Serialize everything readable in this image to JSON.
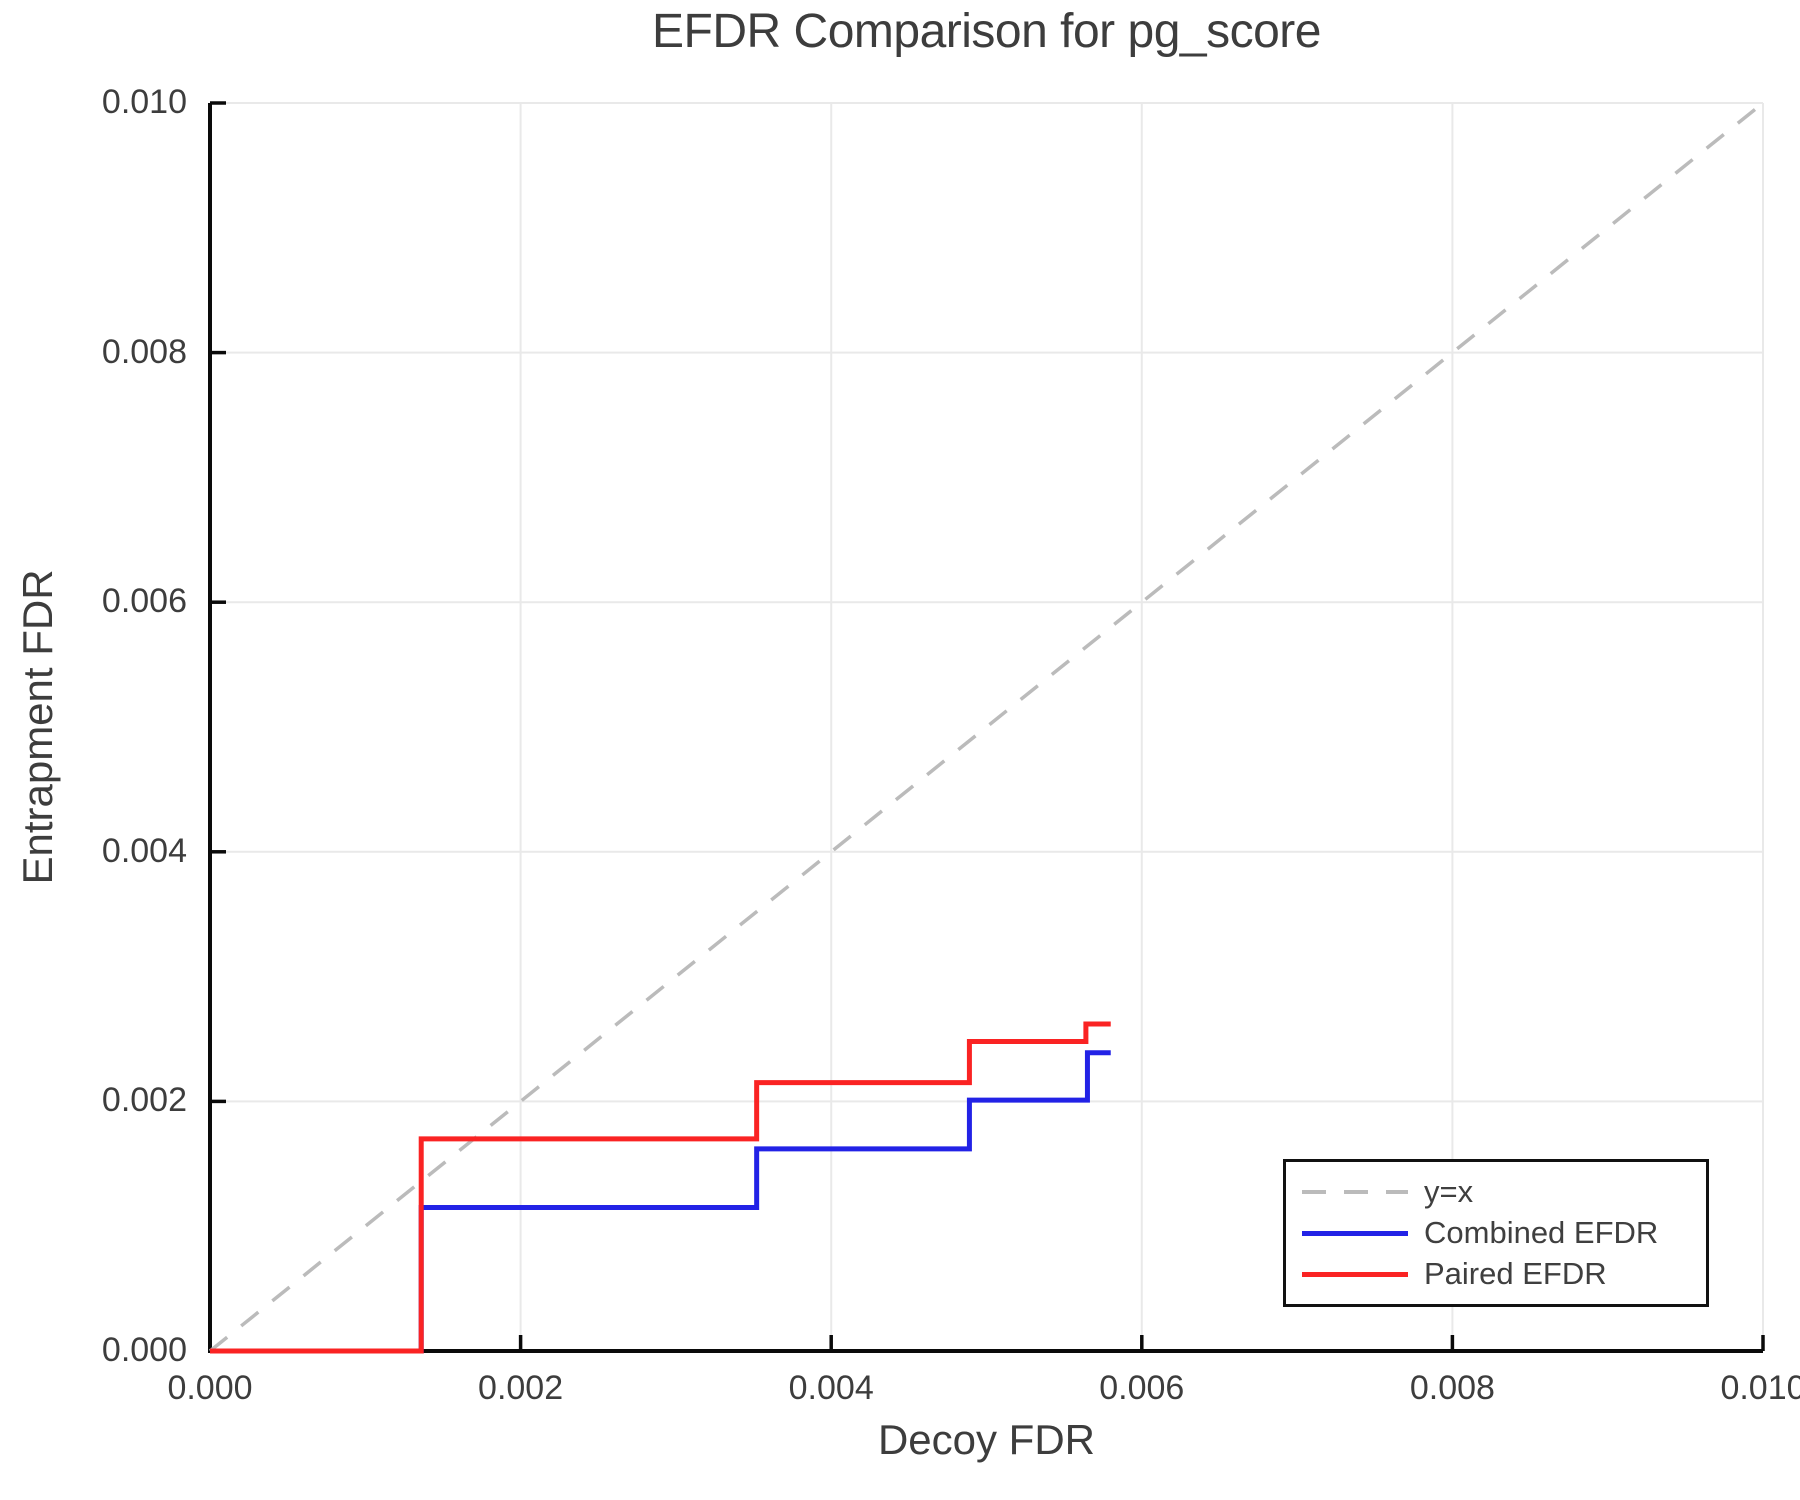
{
  "chart_data": {
    "type": "line",
    "title": "EFDR Comparison for pg_score",
    "xlabel": "Decoy FDR",
    "ylabel": "Entrapment FDR",
    "xlim": [
      0,
      0.01
    ],
    "ylim": [
      0,
      0.01
    ],
    "xticks": [
      "0.000",
      "0.002",
      "0.004",
      "0.006",
      "0.008",
      "0.010"
    ],
    "yticks": [
      "0.000",
      "0.002",
      "0.004",
      "0.006",
      "0.008",
      "0.010"
    ],
    "grid": true,
    "legend_position": "bottom-right",
    "colors": {
      "grid": "#e9e9e9",
      "axis": "#0a0a0a",
      "text": "#3d3d3d",
      "reference": "#bbbbbb",
      "combined": "#2222e6",
      "paired": "#fa2323"
    },
    "series": [
      {
        "name": "y=x",
        "color": "#bbbbbb",
        "style": "dashed",
        "width": 3.5,
        "points": [
          [
            0,
            0
          ],
          [
            0.01,
            0.01
          ]
        ]
      },
      {
        "name": "Combined EFDR",
        "color": "#2222e6",
        "style": "solid",
        "width": 5,
        "points": [
          [
            0,
            0
          ],
          [
            0.00136,
            0
          ],
          [
            0.00136,
            0.00115
          ],
          [
            0.00352,
            0.00115
          ],
          [
            0.00352,
            0.00162
          ],
          [
            0.00489,
            0.00162
          ],
          [
            0.00489,
            0.00201
          ],
          [
            0.00565,
            0.00201
          ],
          [
            0.00565,
            0.00239
          ],
          [
            0.0058,
            0.00239
          ]
        ]
      },
      {
        "name": "Paired EFDR",
        "color": "#fa2323",
        "style": "solid",
        "width": 5,
        "points": [
          [
            0,
            0
          ],
          [
            0.00136,
            0
          ],
          [
            0.00136,
            0.0017
          ],
          [
            0.00352,
            0.0017
          ],
          [
            0.00352,
            0.00215
          ],
          [
            0.00489,
            0.00215
          ],
          [
            0.00489,
            0.00248
          ],
          [
            0.00564,
            0.00248
          ],
          [
            0.00564,
            0.00262
          ],
          [
            0.0058,
            0.00262
          ]
        ]
      }
    ]
  }
}
